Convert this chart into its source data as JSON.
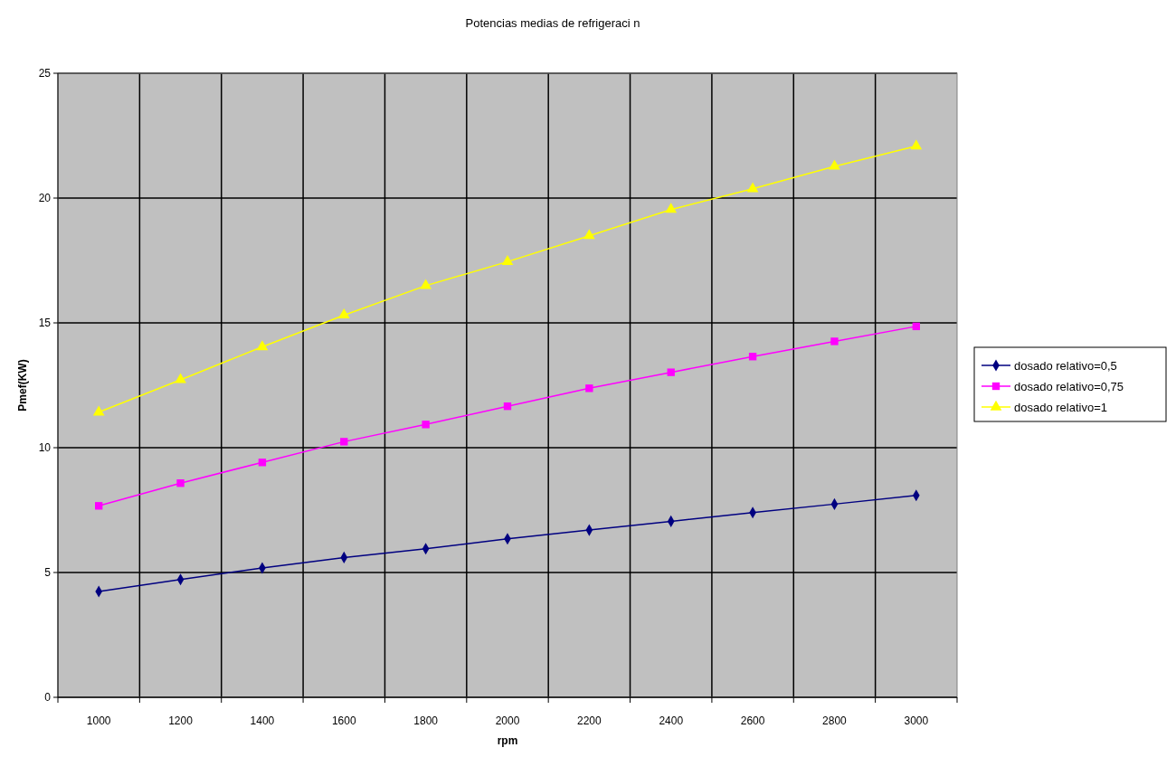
{
  "chart_data": {
    "type": "line",
    "title": "Potencias medias de refrigeraci n",
    "xlabel": "rpm",
    "ylabel": "Pmef(KW)",
    "categories": [
      "1000",
      "1200",
      "1400",
      "1600",
      "1800",
      "2000",
      "2200",
      "2400",
      "2600",
      "2800",
      "3000"
    ],
    "series": [
      {
        "name": "dosado relativo=0,5",
        "color": "#000080",
        "marker": "diamond",
        "values": [
          4.24,
          4.72,
          5.18,
          5.6,
          5.95,
          6.35,
          6.7,
          7.05,
          7.4,
          7.74,
          8.09
        ]
      },
      {
        "name": "dosado relativo=0,75",
        "color": "#ff00ff",
        "marker": "square",
        "values": [
          7.67,
          8.58,
          9.41,
          10.24,
          10.93,
          11.66,
          12.38,
          13.02,
          13.65,
          14.26,
          14.86
        ]
      },
      {
        "name": "dosado relativo=1",
        "color": "#ffff00",
        "marker": "triangle",
        "values": [
          11.42,
          12.72,
          14.04,
          15.31,
          16.49,
          17.45,
          18.49,
          19.54,
          20.37,
          21.27,
          22.08
        ]
      }
    ],
    "ylim": [
      0,
      25
    ],
    "yticks": [
      0,
      5,
      10,
      15,
      20,
      25
    ],
    "grid": true,
    "legend": "right",
    "line_style": "solid"
  }
}
